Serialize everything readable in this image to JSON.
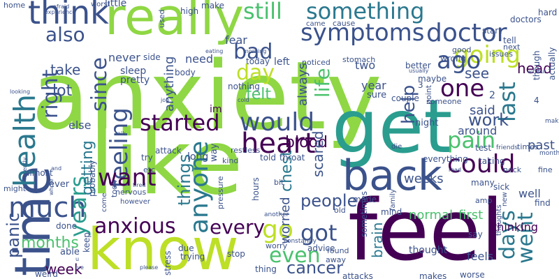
{
  "words": [
    {
      "text": "anxiety",
      "color": "#8fd744"
    },
    {
      "text": "like",
      "color": "#8fd744"
    },
    {
      "text": "get",
      "color": "#2a9d8f"
    },
    {
      "text": "feel",
      "color": "#440154"
    },
    {
      "text": "time",
      "color": "#3b528b"
    },
    {
      "text": "know",
      "color": "#bddf26"
    },
    {
      "text": "really",
      "color": "#8fd744"
    },
    {
      "text": "back",
      "color": "#3b528b"
    },
    {
      "text": "think",
      "color": "#3b528b"
    },
    {
      "text": "health",
      "color": "#2a788e"
    },
    {
      "text": "something",
      "color": "#2a788e"
    },
    {
      "text": "doctor",
      "color": "#3b528b"
    },
    {
      "text": "symptoms",
      "color": "#3b528b"
    },
    {
      "text": "still",
      "color": "#4ac16d"
    },
    {
      "text": "going",
      "color": "#bddf26"
    },
    {
      "text": "also",
      "color": "#3b528b"
    },
    {
      "text": "right",
      "color": "#3b528b"
    },
    {
      "text": "much",
      "color": "#3b528b"
    },
    {
      "text": "years",
      "color": "#2a9d8f"
    },
    {
      "text": "since",
      "color": "#3b528b"
    },
    {
      "text": "feeling",
      "color": "#3b528b"
    },
    {
      "text": "day",
      "color": "#bddf26"
    },
    {
      "text": "bad",
      "color": "#3b528b"
    },
    {
      "text": "one",
      "color": "#440154"
    },
    {
      "text": "ago",
      "color": "#3b528b"
    },
    {
      "text": "life",
      "color": "#4ac16d"
    },
    {
      "text": "would",
      "color": "#3b528b"
    },
    {
      "text": "started",
      "color": "#440154"
    },
    {
      "text": "heart",
      "color": "#440154"
    },
    {
      "text": "pain",
      "color": "#4ac16d"
    },
    {
      "text": "could",
      "color": "#440154"
    },
    {
      "text": "anyone",
      "color": "#2a788e"
    },
    {
      "text": "want",
      "color": "#440154"
    },
    {
      "text": "anxious",
      "color": "#440154"
    },
    {
      "text": "every",
      "color": "#440154"
    },
    {
      "text": "go",
      "color": "#bddf26"
    },
    {
      "text": "got",
      "color": "#3b528b"
    },
    {
      "text": "even",
      "color": "#4ac16d"
    },
    {
      "text": "days",
      "color": "#2a788e"
    },
    {
      "text": "last",
      "color": "#2a788e"
    },
    {
      "text": "went",
      "color": "#2a788e"
    },
    {
      "text": "help",
      "color": "#3b528b"
    },
    {
      "text": "cancer",
      "color": "#3b528b"
    },
    {
      "text": "people",
      "color": "#3b528b"
    },
    {
      "text": "panic",
      "color": "#3b528b"
    },
    {
      "text": "months",
      "color": "#4ac16d"
    },
    {
      "text": "week",
      "color": "#440154"
    },
    {
      "text": "things",
      "color": "#2a788e"
    },
    {
      "text": "getting",
      "color": "#2a788e"
    },
    {
      "text": "work",
      "color": "#3b528b"
    },
    {
      "text": "blood",
      "color": "#440154"
    },
    {
      "text": "chest",
      "color": "#2a788e"
    },
    {
      "text": "take",
      "color": "#3b528b"
    },
    {
      "text": "lot",
      "color": "#3b528b"
    },
    {
      "text": "never",
      "color": "#3b528b"
    },
    {
      "text": "sleep",
      "color": "#3b528b"
    },
    {
      "text": "pretty",
      "color": "#3b528b"
    },
    {
      "text": "felt",
      "color": "#4ac16d"
    },
    {
      "text": "see",
      "color": "#3b528b"
    },
    {
      "text": "said",
      "color": "#3b528b"
    },
    {
      "text": "year",
      "color": "#3b528b"
    },
    {
      "text": "always",
      "color": "#3b528b"
    },
    {
      "text": "anything",
      "color": "#3b528b"
    },
    {
      "text": "head",
      "color": "#440154"
    },
    {
      "text": "two",
      "color": "#3b528b"
    },
    {
      "text": "else",
      "color": "#3b528b"
    },
    {
      "text": "scared",
      "color": "#3b528b"
    },
    {
      "text": "weeks",
      "color": "#3b528b"
    },
    {
      "text": "normal",
      "color": "#4ac16d"
    },
    {
      "text": "first",
      "color": "#4ac16d"
    },
    {
      "text": "thinking",
      "color": "#440154"
    },
    {
      "text": "past",
      "color": "#3b528b"
    },
    {
      "text": "around",
      "color": "#3b528b"
    },
    {
      "text": "brain",
      "color": "#2a788e"
    },
    {
      "text": "worried",
      "color": "#3b528b"
    },
    {
      "text": "little",
      "color": "#3b528b"
    },
    {
      "text": "make",
      "color": "#3b528b"
    },
    {
      "text": "need",
      "color": "#3b528b"
    },
    {
      "text": "fear",
      "color": "#3b528b"
    },
    {
      "text": "today",
      "color": "#3b528b"
    },
    {
      "text": "left",
      "color": "#3b528b"
    },
    {
      "text": "nothing",
      "color": "#3b528b"
    },
    {
      "text": "im",
      "color": "#440154"
    },
    {
      "text": "long",
      "color": "#3b528b"
    },
    {
      "text": "way",
      "color": "#3b528b"
    },
    {
      "text": "hours",
      "color": "#3b528b"
    },
    {
      "text": "told",
      "color": "#3b528b"
    },
    {
      "text": "throat",
      "color": "#3b528b"
    },
    {
      "text": "attack",
      "color": "#3b528b"
    },
    {
      "text": "kind",
      "color": "#3b528b"
    },
    {
      "text": "ever",
      "color": "#3b528b"
    },
    {
      "text": "almost",
      "color": "#3b528b"
    },
    {
      "text": "done",
      "color": "#3b528b"
    },
    {
      "text": "able",
      "color": "#3b528b"
    },
    {
      "text": "keep",
      "color": "#3b528b"
    },
    {
      "text": "weird",
      "color": "#3b528b"
    },
    {
      "text": "due",
      "color": "#3b528b"
    },
    {
      "text": "trying",
      "color": "#3b528b"
    },
    {
      "text": "stress",
      "color": "#3b528b"
    },
    {
      "text": "stop",
      "color": "#3b528b"
    },
    {
      "text": "mind",
      "color": "#3b528b"
    },
    {
      "text": "advice",
      "color": "#3b528b"
    },
    {
      "text": "found",
      "color": "#3b528b"
    },
    {
      "text": "away",
      "color": "#3b528b"
    },
    {
      "text": "attacks",
      "color": "#3b528b"
    },
    {
      "text": "makes",
      "color": "#3b528b"
    },
    {
      "text": "worse",
      "color": "#3b528b"
    },
    {
      "text": "feels",
      "color": "#3b528b"
    },
    {
      "text": "thought",
      "color": "#3b528b"
    },
    {
      "text": "say",
      "color": "#3b528b"
    },
    {
      "text": "sick",
      "color": "#3b528b"
    },
    {
      "text": "well",
      "color": "#3b528b"
    },
    {
      "text": "find",
      "color": "#3b528b"
    },
    {
      "text": "many",
      "color": "#3b528b"
    },
    {
      "text": "sometimes",
      "color": "#3b528b"
    },
    {
      "text": "made",
      "color": "#3b528b"
    },
    {
      "text": "old",
      "color": "#3b528b"
    },
    {
      "text": "everything",
      "color": "#3b528b"
    },
    {
      "text": "test",
      "color": "#3b528b"
    },
    {
      "text": "times",
      "color": "#3b528b"
    },
    {
      "text": "fine",
      "color": "#3b528b"
    },
    {
      "text": "taking",
      "color": "#3b528b"
    },
    {
      "text": "night",
      "color": "#3b528b"
    },
    {
      "text": "sure",
      "color": "#3b528b"
    },
    {
      "text": "couple",
      "color": "#3b528b"
    },
    {
      "text": "someone",
      "color": "#3b528b"
    },
    {
      "text": "maybe",
      "color": "#3b528b"
    },
    {
      "text": "point",
      "color": "#3b528b"
    },
    {
      "text": "better",
      "color": "#3b528b"
    },
    {
      "text": "wrong",
      "color": "#3b528b"
    },
    {
      "text": "good",
      "color": "#3b528b"
    },
    {
      "text": "start",
      "color": "#3b528b"
    },
    {
      "text": "tell",
      "color": "#3b528b"
    },
    {
      "text": "next",
      "color": "#3b528b"
    },
    {
      "text": "issues",
      "color": "#3b528b"
    },
    {
      "text": "hard",
      "color": "#3b528b"
    },
    {
      "text": "though",
      "color": "#3b528b"
    },
    {
      "text": "actually",
      "color": "#3b528b"
    },
    {
      "text": "doctors",
      "color": "#3b528b"
    },
    {
      "text": "came",
      "color": "#3b528b"
    },
    {
      "text": "cause",
      "color": "#3b528b"
    },
    {
      "text": "stomach",
      "color": "#3b528b"
    },
    {
      "text": "noticed",
      "color": "#3b528b"
    },
    {
      "text": "body",
      "color": "#3b528b"
    },
    {
      "text": "side",
      "color": "#3b528b"
    },
    {
      "text": "high",
      "color": "#3b528b"
    },
    {
      "text": "used",
      "color": "#3b528b"
    },
    {
      "text": "home",
      "color": "#3b528b"
    },
    {
      "text": "worst",
      "color": "#3b528b"
    },
    {
      "text": "try",
      "color": "#3b528b"
    },
    {
      "text": "took",
      "color": "#3b528b"
    },
    {
      "text": "probably",
      "color": "#3b528b"
    },
    {
      "text": "nervous",
      "color": "#3b528b"
    },
    {
      "text": "however",
      "color": "#3b528b"
    },
    {
      "text": "restless",
      "color": "#3b528b"
    },
    {
      "text": "pressure",
      "color": "#3b528b"
    },
    {
      "text": "bit",
      "color": "#3b528b"
    },
    {
      "text": "come",
      "color": "#3b528b"
    },
    {
      "text": "etc",
      "color": "#3b528b"
    },
    {
      "text": "might",
      "color": "#3b528b"
    },
    {
      "text": "another",
      "color": "#3b528b"
    },
    {
      "text": "constantly",
      "color": "#3b528b"
    },
    {
      "text": "worry",
      "color": "#3b528b"
    },
    {
      "text": "thing",
      "color": "#3b528b"
    },
    {
      "text": "family",
      "color": "#3b528b"
    },
    {
      "text": "die",
      "color": "#3b528b"
    },
    {
      "text": "amp",
      "color": "#3b528b"
    },
    {
      "text": "thoughts",
      "color": "#3b528b"
    },
    {
      "text": "new",
      "color": "#3b528b"
    },
    {
      "text": "neck",
      "color": "#3b528b"
    },
    {
      "text": "friends",
      "color": "#3b528b"
    },
    {
      "text": "month",
      "color": "#3b528b"
    },
    {
      "text": "making",
      "color": "#3b528b"
    },
    {
      "text": "experience",
      "color": "#3b528b"
    },
    {
      "text": "afraid",
      "color": "#3b528b"
    },
    {
      "text": "eating",
      "color": "#3b528b"
    },
    {
      "text": "morning",
      "color": "#3b528b"
    },
    {
      "text": "usually",
      "color": "#3b528b"
    },
    {
      "text": "looking",
      "color": "#3b528b"
    },
    {
      "text": "job",
      "color": "#3b528b"
    },
    {
      "text": "cold",
      "color": "#3b528b"
    },
    {
      "text": "talk",
      "color": "#3b528b"
    },
    {
      "text": "tired",
      "color": "#3b528b"
    },
    {
      "text": "please",
      "color": "#3b528b"
    },
    {
      "text": "recently",
      "color": "#3b528b"
    },
    {
      "text": "and",
      "color": "#3b528b"
    },
    {
      "text": "whole",
      "color": "#3b528b"
    },
    {
      "text": "read",
      "color": "#3b528b"
    },
    {
      "text": "without",
      "color": "#3b528b"
    },
    {
      "text": "2",
      "color": "#3b528b"
    },
    {
      "text": "3",
      "color": "#3b528b"
    },
    {
      "text": "4",
      "color": "#3b528b"
    },
    {
      "text": "u",
      "color": "#3b528b"
    },
    {
      "text": "ive",
      "color": "#3b528b"
    }
  ]
}
